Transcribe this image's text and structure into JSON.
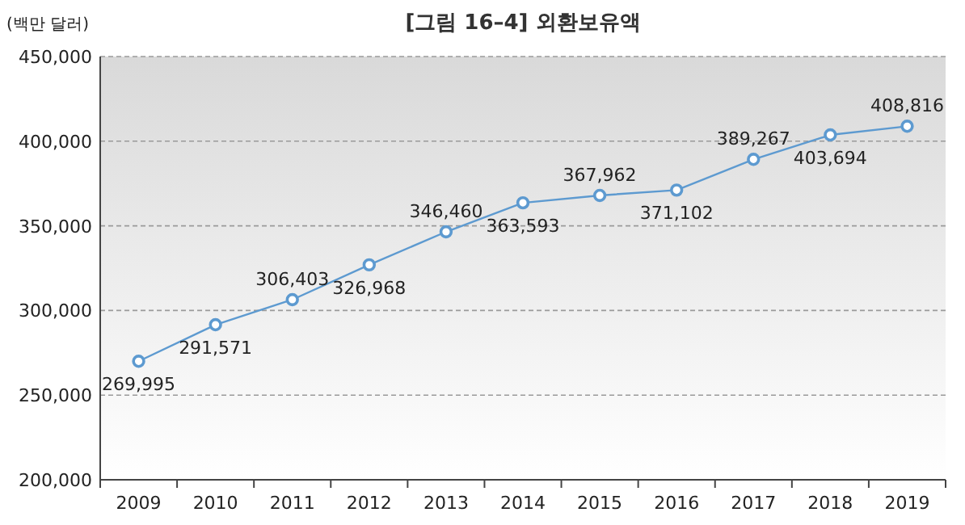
{
  "chart_data": {
    "type": "line",
    "title": "[그림 16–4] 외환보유액",
    "ylabel": "(백만 달러)",
    "categories": [
      "2009",
      "2010",
      "2011",
      "2012",
      "2013",
      "2014",
      "2015",
      "2016",
      "2017",
      "2018",
      "2019"
    ],
    "series": [
      {
        "color": "#5d9ad0",
        "values": [
          269995,
          291571,
          306403,
          326968,
          346460,
          363593,
          367962,
          371102,
          389267,
          403694,
          408816
        ]
      }
    ],
    "value_labels": [
      "269,995",
      "291,571",
      "306,403",
      "326,968",
      "346,460",
      "363,593",
      "367,962",
      "371,102",
      "389,267",
      "403,694",
      "408,816"
    ],
    "ylim": [
      200000,
      450000
    ],
    "yticks": [
      {
        "value": 200000,
        "label": "200,000"
      },
      {
        "value": 250000,
        "label": "250,000"
      },
      {
        "value": 300000,
        "label": "300,000"
      },
      {
        "value": 350000,
        "label": "350,000"
      },
      {
        "value": 400000,
        "label": "400,000"
      },
      {
        "value": 450000,
        "label": "450,000"
      }
    ],
    "grid": "y",
    "marker": "circle",
    "line_style": "solid"
  }
}
